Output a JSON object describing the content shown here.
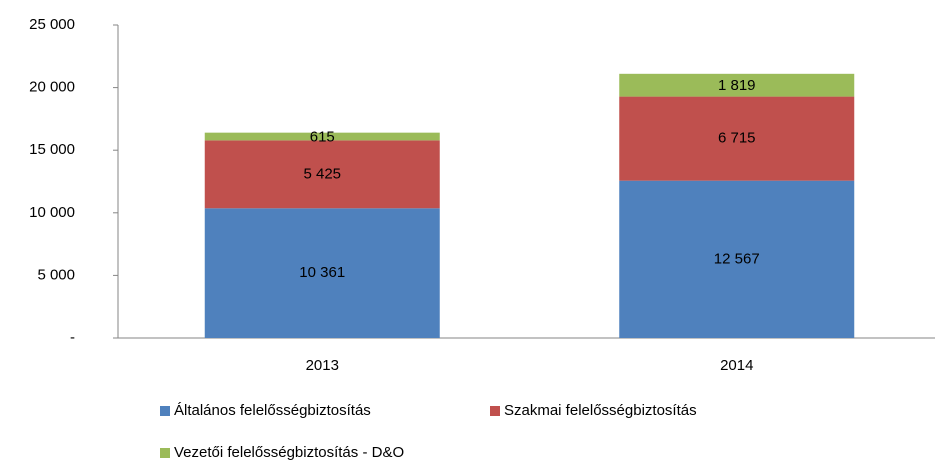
{
  "chart_data": {
    "type": "stacked_bar",
    "categories": [
      "2013",
      "2014"
    ],
    "series": [
      {
        "name": "Általános felelősségbiztosítás",
        "color": "#4f81bd",
        "values": [
          10361,
          12567
        ],
        "value_labels": [
          "10 361",
          "12 567"
        ]
      },
      {
        "name": "Szakmai felelősségbiztosítás",
        "color": "#c0504d",
        "values": [
          5425,
          6715
        ],
        "value_labels": [
          "5 425",
          "6 715"
        ]
      },
      {
        "name": "Vezetői felelősségbiztosítás - D&O",
        "color": "#9bbb59",
        "values": [
          615,
          1819
        ],
        "value_labels": [
          "615",
          "1 819"
        ]
      }
    ],
    "ylim": [
      0,
      25000
    ],
    "yticks": [
      {
        "value": 0,
        "label": "-"
      },
      {
        "value": 5000,
        "label": "5 000"
      },
      {
        "value": 10000,
        "label": "10 000"
      },
      {
        "value": 15000,
        "label": "15 000"
      },
      {
        "value": 20000,
        "label": "20 000"
      },
      {
        "value": 25000,
        "label": "25 000"
      }
    ],
    "grid": false,
    "legend": "bottom"
  }
}
